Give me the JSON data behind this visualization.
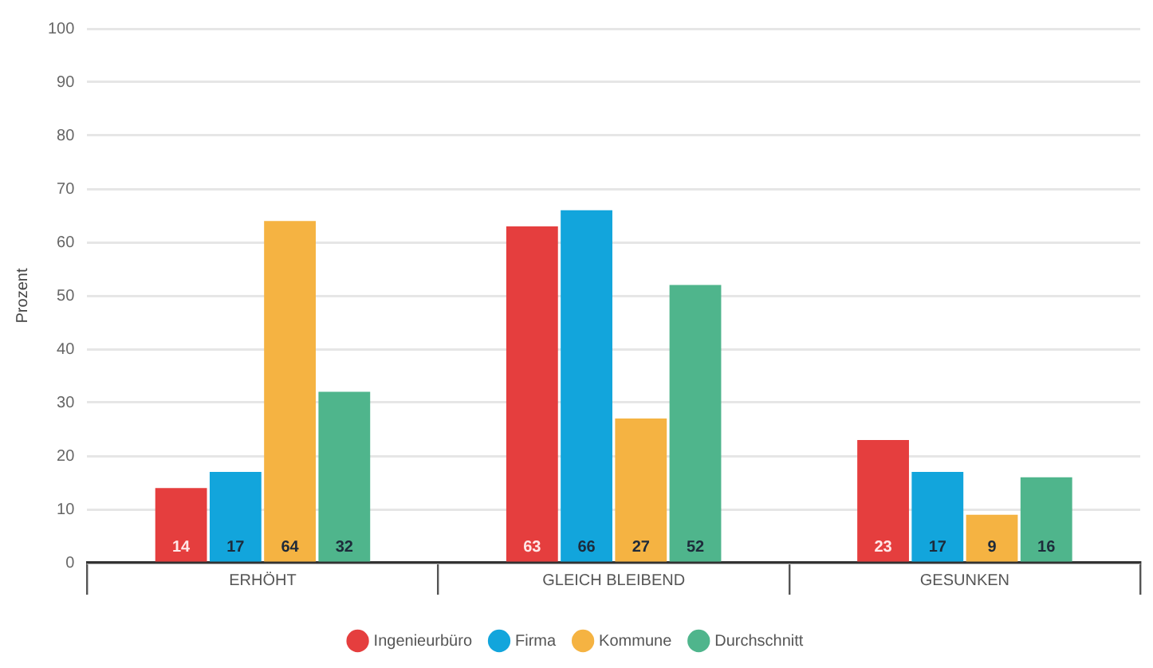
{
  "chart_data": {
    "type": "bar",
    "ylabel": "Prozent",
    "categories": [
      "ERHÖHT",
      "GLEICH BLEIBEND",
      "GESUNKEN"
    ],
    "series": [
      {
        "name": "Ingenieurbüro",
        "color": "#e53e3e",
        "values": [
          14,
          63,
          23
        ]
      },
      {
        "name": "Firma",
        "color": "#12a5dc",
        "values": [
          17,
          66,
          17
        ]
      },
      {
        "name": "Kommune",
        "color": "#f5b342",
        "values": [
          64,
          27,
          9
        ]
      },
      {
        "name": "Durchschnitt",
        "color": "#4fb58c",
        "values": [
          32,
          52,
          16
        ]
      }
    ],
    "ylim": [
      0,
      100
    ],
    "yticks": [
      0,
      10,
      20,
      30,
      40,
      50,
      60,
      70,
      80,
      90,
      100
    ],
    "grid": "y",
    "legend": "bottom",
    "data_labels": true
  }
}
